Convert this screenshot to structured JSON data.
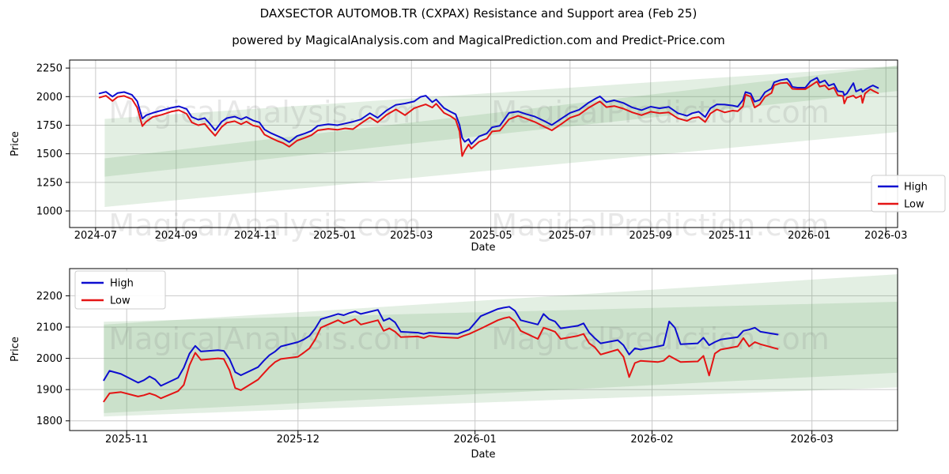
{
  "page": {
    "title": "DAXSECTOR AUTOMOB.TR (CXPAX) Resistance and Support area (Feb 25)",
    "subtitle": "powered by MagicalAnalysis.com and MagicalPrediction.com and Predict-Price.com"
  },
  "watermark": {
    "left": "MagicalAnalysis.com",
    "right": "MagicalPrediction.com"
  },
  "legend": {
    "high": "High",
    "low": "Low"
  },
  "colors": {
    "high": "#0d0dd0",
    "low": "#e41414",
    "band": "#4f9d4f",
    "grid": "#c9c9c9",
    "axis": "#000000",
    "watermark": "#808080"
  },
  "chart_data": [
    {
      "type": "line",
      "name": "full-history",
      "ylabel": "Price",
      "xlabel": "Date",
      "xlim": [
        "2024-06-11",
        "2026-03-10"
      ],
      "ylim": [
        855,
        2320
      ],
      "yticks": [
        1000,
        1250,
        1500,
        1750,
        2000,
        2250
      ],
      "xticks": [
        [
          "2024-07-01",
          "2024-07"
        ],
        [
          "2024-09-01",
          "2024-09"
        ],
        [
          "2024-11-01",
          "2024-11"
        ],
        [
          "2025-01-01",
          "2025-01"
        ],
        [
          "2025-03-01",
          "2025-03"
        ],
        [
          "2025-05-01",
          "2025-05"
        ],
        [
          "2025-07-01",
          "2025-07"
        ],
        [
          "2025-09-01",
          "2025-09"
        ],
        [
          "2025-11-01",
          "2025-11"
        ],
        [
          "2026-01-01",
          "2026-01"
        ],
        [
          "2026-03-01",
          "2026-03"
        ]
      ],
      "bands": [
        {
          "x0": "2024-07-08",
          "x1": "2026-03-10",
          "bottom": [
            1035,
            1690
          ],
          "top": [
            1460,
            2270
          ]
        },
        {
          "x0": "2024-07-08",
          "x1": "2026-03-10",
          "bottom": [
            1300,
            2050
          ],
          "top": [
            1805,
            2270
          ]
        }
      ],
      "dates": [
        "2024-07-04",
        "2024-07-09",
        "2024-07-14",
        "2024-07-18",
        "2024-07-23",
        "2024-07-29",
        "2024-08-02",
        "2024-08-06",
        "2024-08-09",
        "2024-08-14",
        "2024-08-21",
        "2024-08-28",
        "2024-09-03",
        "2024-09-09",
        "2024-09-13",
        "2024-09-18",
        "2024-09-23",
        "2024-09-27",
        "2024-10-01",
        "2024-10-06",
        "2024-10-10",
        "2024-10-16",
        "2024-10-21",
        "2024-10-25",
        "2024-10-30",
        "2024-11-04",
        "2024-11-08",
        "2024-11-13",
        "2024-11-18",
        "2024-11-22",
        "2024-11-27",
        "2024-12-03",
        "2024-12-09",
        "2024-12-14",
        "2024-12-19",
        "2024-12-27",
        "2025-01-03",
        "2025-01-09",
        "2025-01-15",
        "2025-01-21",
        "2025-01-28",
        "2025-02-03",
        "2025-02-10",
        "2025-02-17",
        "2025-02-24",
        "2025-03-03",
        "2025-03-08",
        "2025-03-12",
        "2025-03-17",
        "2025-03-20",
        "2025-03-26",
        "2025-03-31",
        "2025-04-04",
        "2025-04-07",
        "2025-04-09",
        "2025-04-11",
        "2025-04-14",
        "2025-04-16",
        "2025-04-22",
        "2025-04-28",
        "2025-05-02",
        "2025-05-08",
        "2025-05-15",
        "2025-05-22",
        "2025-05-28",
        "2025-06-04",
        "2025-06-11",
        "2025-06-17",
        "2025-06-24",
        "2025-07-01",
        "2025-07-08",
        "2025-07-15",
        "2025-07-21",
        "2025-07-24",
        "2025-07-29",
        "2025-08-04",
        "2025-08-11",
        "2025-08-18",
        "2025-08-25",
        "2025-09-01",
        "2025-09-08",
        "2025-09-15",
        "2025-09-22",
        "2025-09-29",
        "2025-10-03",
        "2025-10-08",
        "2025-10-13",
        "2025-10-17",
        "2025-10-22",
        "2025-10-28",
        "2025-11-03",
        "2025-11-07",
        "2025-11-11",
        "2025-11-13",
        "2025-11-17",
        "2025-11-20",
        "2025-11-24",
        "2025-11-28",
        "2025-12-03",
        "2025-12-05",
        "2025-12-10",
        "2025-12-15",
        "2025-12-17",
        "2025-12-19",
        "2025-12-23",
        "2025-12-29",
        "2026-01-02",
        "2026-01-07",
        "2026-01-09",
        "2026-01-13",
        "2026-01-16",
        "2026-01-20",
        "2026-01-23",
        "2026-01-27",
        "2026-01-28",
        "2026-01-30",
        "2026-02-04",
        "2026-02-06",
        "2026-02-10",
        "2026-02-11",
        "2026-02-13",
        "2026-02-17",
        "2026-02-19",
        "2026-02-23"
      ],
      "high": [
        2028,
        2042,
        2000,
        2032,
        2040,
        2015,
        1960,
        1808,
        1838,
        1858,
        1880,
        1902,
        1915,
        1892,
        1822,
        1798,
        1812,
        1762,
        1705,
        1780,
        1812,
        1825,
        1802,
        1822,
        1792,
        1775,
        1712,
        1680,
        1655,
        1635,
        1602,
        1655,
        1678,
        1700,
        1745,
        1758,
        1750,
        1765,
        1780,
        1800,
        1855,
        1815,
        1880,
        1928,
        1940,
        1958,
        1998,
        2008,
        1952,
        1975,
        1900,
        1868,
        1845,
        1752,
        1640,
        1605,
        1628,
        1585,
        1652,
        1678,
        1732,
        1745,
        1858,
        1870,
        1848,
        1825,
        1788,
        1752,
        1805,
        1858,
        1885,
        1945,
        1985,
        2002,
        1952,
        1968,
        1945,
        1905,
        1882,
        1912,
        1898,
        1910,
        1855,
        1832,
        1855,
        1868,
        1822,
        1898,
        1932,
        1930,
        1922,
        1912,
        1970,
        2040,
        2026,
        1956,
        1972,
        2038,
        2072,
        2125,
        2145,
        2155,
        2128,
        2085,
        2078,
        2078,
        2135,
        2165,
        2122,
        2142,
        2096,
        2112,
        2048,
        2042,
        2012,
        2028,
        2118,
        2045,
        2066,
        2042,
        2060,
        2088,
        2098,
        2076
      ],
      "low": [
        1992,
        2008,
        1962,
        1998,
        2006,
        1978,
        1905,
        1742,
        1782,
        1822,
        1842,
        1868,
        1882,
        1850,
        1775,
        1750,
        1762,
        1708,
        1658,
        1735,
        1772,
        1785,
        1758,
        1782,
        1748,
        1735,
        1668,
        1638,
        1612,
        1595,
        1562,
        1615,
        1640,
        1662,
        1705,
        1718,
        1710,
        1722,
        1715,
        1765,
        1818,
        1775,
        1842,
        1888,
        1838,
        1898,
        1918,
        1932,
        1905,
        1938,
        1858,
        1830,
        1798,
        1695,
        1480,
        1528,
        1582,
        1545,
        1605,
        1632,
        1695,
        1702,
        1802,
        1832,
        1808,
        1778,
        1738,
        1705,
        1758,
        1815,
        1842,
        1900,
        1940,
        1958,
        1908,
        1918,
        1895,
        1862,
        1838,
        1868,
        1855,
        1862,
        1810,
        1788,
        1812,
        1822,
        1778,
        1852,
        1888,
        1862,
        1878,
        1872,
        1915,
        2018,
        2000,
        1905,
        1932,
        1998,
        2032,
        2098,
        2118,
        2122,
        2096,
        2068,
        2065,
        2065,
        2095,
        2132,
        2088,
        2098,
        2062,
        2078,
        2012,
        2005,
        1940,
        1992,
        2008,
        1988,
        2008,
        1945,
        2028,
        2065,
        2052,
        2030
      ]
    },
    {
      "type": "line",
      "name": "recent-detail",
      "ylabel": "Price",
      "xlabel": "Date",
      "xlim": [
        "2025-10-22",
        "2026-03-16"
      ],
      "ylim": [
        1769,
        2287
      ],
      "yticks": [
        1800,
        1900,
        2000,
        2100,
        2200
      ],
      "xticks": [
        [
          "2025-11-01",
          "2025-11"
        ],
        [
          "2025-12-01",
          "2025-12"
        ],
        [
          "2026-01-01",
          "2026-01"
        ],
        [
          "2026-02-01",
          "2026-02"
        ],
        [
          "2026-03-01",
          "2026-03"
        ]
      ],
      "bands": [
        {
          "x0": "2025-10-28",
          "x1": "2026-03-16",
          "bottom": [
            1814,
            1907
          ],
          "top": [
            2117,
            2181
          ]
        },
        {
          "x0": "2025-10-28",
          "x1": "2026-03-16",
          "bottom": [
            1825,
            1954
          ],
          "top": [
            2108,
            2269
          ]
        }
      ],
      "dates": [
        "2025-10-28",
        "2025-10-29",
        "2025-10-31",
        "2025-11-03",
        "2025-11-04",
        "2025-11-05",
        "2025-11-06",
        "2025-11-07",
        "2025-11-10",
        "2025-11-11",
        "2025-11-12",
        "2025-11-13",
        "2025-11-14",
        "2025-11-17",
        "2025-11-18",
        "2025-11-19",
        "2025-11-20",
        "2025-11-21",
        "2025-11-24",
        "2025-11-25",
        "2025-11-26",
        "2025-11-27",
        "2025-11-28",
        "2025-12-01",
        "2025-12-02",
        "2025-12-03",
        "2025-12-04",
        "2025-12-05",
        "2025-12-08",
        "2025-12-09",
        "2025-12-10",
        "2025-12-11",
        "2025-12-12",
        "2025-12-15",
        "2025-12-16",
        "2025-12-17",
        "2025-12-18",
        "2025-12-19",
        "2025-12-22",
        "2025-12-23",
        "2025-12-24",
        "2025-12-26",
        "2025-12-29",
        "2025-12-30",
        "2025-12-31",
        "2026-01-02",
        "2026-01-05",
        "2026-01-06",
        "2026-01-07",
        "2026-01-08",
        "2026-01-09",
        "2026-01-12",
        "2026-01-13",
        "2026-01-14",
        "2026-01-15",
        "2026-01-16",
        "2026-01-19",
        "2026-01-20",
        "2026-01-21",
        "2026-01-22",
        "2026-01-23",
        "2026-01-26",
        "2026-01-27",
        "2026-01-28",
        "2026-01-29",
        "2026-01-30",
        "2026-02-02",
        "2026-02-03",
        "2026-02-04",
        "2026-02-05",
        "2026-02-06",
        "2026-02-09",
        "2026-02-10",
        "2026-02-11",
        "2026-02-12",
        "2026-02-13",
        "2026-02-16",
        "2026-02-17",
        "2026-02-18",
        "2026-02-19",
        "2026-02-20",
        "2026-02-23"
      ],
      "high": [
        1930,
        1960,
        1950,
        1922,
        1930,
        1942,
        1932,
        1912,
        1938,
        1970,
        2015,
        2040,
        2022,
        2026,
        2024,
        1998,
        1956,
        1946,
        1972,
        1992,
        2010,
        2022,
        2038,
        2052,
        2060,
        2072,
        2095,
        2125,
        2142,
        2138,
        2145,
        2150,
        2142,
        2155,
        2120,
        2128,
        2115,
        2085,
        2082,
        2078,
        2082,
        2080,
        2078,
        2085,
        2092,
        2135,
        2158,
        2162,
        2165,
        2152,
        2122,
        2108,
        2142,
        2125,
        2118,
        2096,
        2104,
        2112,
        2082,
        2064,
        2048,
        2058,
        2042,
        2012,
        2032,
        2028,
        2038,
        2042,
        2118,
        2098,
        2045,
        2048,
        2066,
        2042,
        2052,
        2060,
        2068,
        2088,
        2092,
        2098,
        2085,
        2076
      ],
      "low": [
        1862,
        1888,
        1892,
        1878,
        1882,
        1888,
        1882,
        1872,
        1895,
        1915,
        1978,
        2018,
        1995,
        2000,
        1998,
        1962,
        1905,
        1898,
        1932,
        1952,
        1972,
        1988,
        1998,
        2005,
        2018,
        2032,
        2060,
        2098,
        2122,
        2112,
        2118,
        2125,
        2108,
        2122,
        2088,
        2096,
        2085,
        2068,
        2070,
        2065,
        2072,
        2068,
        2065,
        2072,
        2078,
        2095,
        2122,
        2128,
        2132,
        2118,
        2088,
        2062,
        2098,
        2092,
        2085,
        2062,
        2072,
        2078,
        2048,
        2035,
        2012,
        2028,
        2005,
        1940,
        1985,
        1992,
        1988,
        1992,
        2008,
        1998,
        1988,
        1990,
        2008,
        1945,
        2015,
        2028,
        2038,
        2065,
        2038,
        2052,
        2045,
        2030
      ]
    }
  ]
}
